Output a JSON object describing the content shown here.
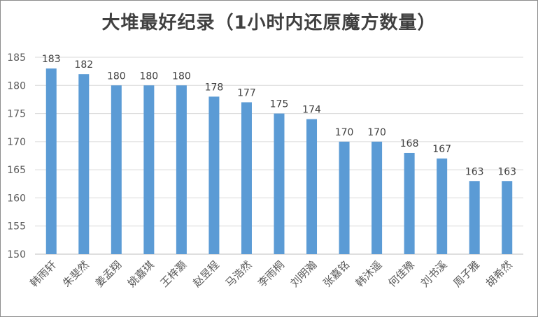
{
  "chart_data": {
    "type": "bar",
    "title": "大堆最好纪录（1小时内还原魔方数量）",
    "categories": [
      "韩雨轩",
      "朱斐然",
      "姜孟翔",
      "姚嘉琪",
      "王梓灏",
      "赵昱程",
      "马浩然",
      "李雨桐",
      "刘明瀚",
      "张嘉铭",
      "韩沐遥",
      "何佳豫",
      "刘书溪",
      "周子雅",
      "胡希然"
    ],
    "values": [
      183,
      182,
      180,
      180,
      180,
      178,
      177,
      175,
      174,
      170,
      170,
      168,
      167,
      163,
      163
    ],
    "ylim": [
      150,
      185
    ],
    "yticks": [
      150,
      155,
      160,
      165,
      170,
      175,
      180,
      185
    ],
    "grid": true,
    "bar_color": "#5b9bd5",
    "grid_color": "#d9d9d9",
    "show_data_labels": true,
    "legend": "none"
  }
}
